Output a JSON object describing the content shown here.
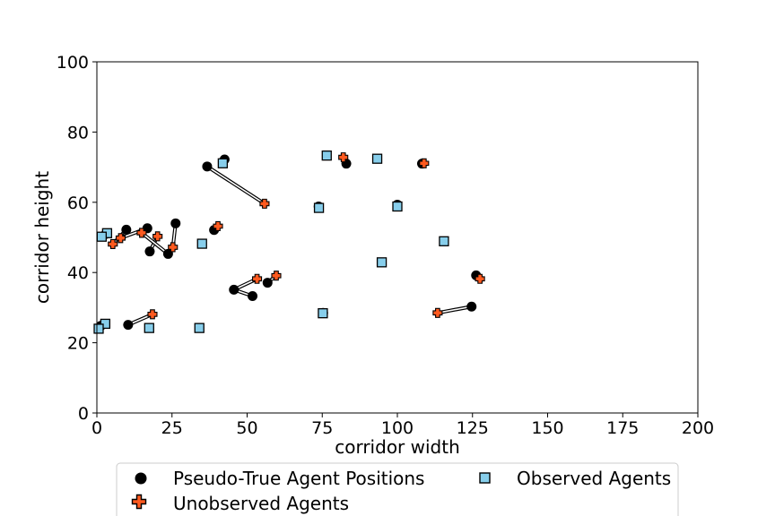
{
  "chart_data": {
    "type": "scatter",
    "title": "",
    "xlabel": "corridor width",
    "ylabel": "corridor height",
    "xlim": [
      0,
      200
    ],
    "ylim": [
      0,
      100
    ],
    "xticks": [
      0,
      25,
      50,
      75,
      100,
      125,
      150,
      175,
      200
    ],
    "yticks": [
      0,
      20,
      40,
      60,
      80,
      100
    ],
    "grid": false,
    "legend_position": "bottom",
    "colors": {
      "pseudo_true": "#000000",
      "unobserved": "#ff5a1f",
      "observed": "#87ceeb",
      "link": "#000000"
    },
    "legend": {
      "pseudo_true": "Pseudo-True Agent Positions",
      "unobserved": "Unobserved Agents",
      "observed": "Observed Agents"
    },
    "pseudo_true": [
      [
        42.5,
        72.2
      ],
      [
        36.7,
        70.2
      ],
      [
        83.0,
        71.0
      ],
      [
        108.2,
        71.0
      ],
      [
        73.8,
        58.8
      ],
      [
        100.0,
        59.3
      ],
      [
        26.2,
        54.0
      ],
      [
        9.8,
        52.2
      ],
      [
        16.8,
        52.6
      ],
      [
        39.0,
        52.1
      ],
      [
        3.0,
        51.0
      ],
      [
        17.6,
        46.0
      ],
      [
        23.7,
        45.3
      ],
      [
        126.2,
        39.2
      ],
      [
        51.8,
        33.3
      ],
      [
        56.8,
        37.1
      ],
      [
        45.6,
        35.1
      ],
      [
        124.7,
        30.3
      ],
      [
        75.3,
        28.5
      ],
      [
        10.4,
        25.1
      ],
      [
        1.3,
        24.8
      ]
    ],
    "unobserved": [
      [
        55.8,
        59.6
      ],
      [
        82.0,
        72.8
      ],
      [
        108.9,
        71.1
      ],
      [
        40.3,
        53.2
      ],
      [
        5.3,
        48.1
      ],
      [
        7.9,
        49.8
      ],
      [
        14.9,
        51.3
      ],
      [
        20.2,
        50.3
      ],
      [
        25.3,
        47.2
      ],
      [
        127.5,
        38.2
      ],
      [
        53.3,
        38.2
      ],
      [
        59.7,
        39.1
      ],
      [
        113.4,
        28.5
      ],
      [
        18.5,
        28.1
      ]
    ],
    "observed": [
      [
        41.9,
        71.1
      ],
      [
        76.5,
        73.3
      ],
      [
        93.3,
        72.4
      ],
      [
        73.9,
        58.4
      ],
      [
        100.0,
        58.8
      ],
      [
        3.4,
        51.2
      ],
      [
        1.6,
        50.2
      ],
      [
        35.0,
        48.2
      ],
      [
        115.5,
        48.9
      ],
      [
        94.8,
        42.9
      ],
      [
        75.2,
        28.4
      ],
      [
        2.8,
        25.4
      ],
      [
        17.4,
        24.2
      ],
      [
        34.1,
        24.2
      ],
      [
        0.6,
        24.0
      ]
    ],
    "links": [
      [
        [
          36.7,
          70.2
        ],
        [
          55.8,
          59.6
        ]
      ],
      [
        [
          83.0,
          71.0
        ],
        [
          82.0,
          72.8
        ]
      ],
      [
        [
          9.8,
          52.2
        ],
        [
          5.3,
          48.1
        ]
      ],
      [
        [
          16.8,
          52.6
        ],
        [
          7.9,
          49.8
        ]
      ],
      [
        [
          17.6,
          46.0
        ],
        [
          20.2,
          50.3
        ]
      ],
      [
        [
          23.7,
          45.3
        ],
        [
          14.9,
          51.3
        ]
      ],
      [
        [
          26.2,
          54.0
        ],
        [
          25.3,
          47.2
        ]
      ],
      [
        [
          39.0,
          52.1
        ],
        [
          40.3,
          53.2
        ]
      ],
      [
        [
          51.8,
          33.3
        ],
        [
          45.6,
          35.1
        ]
      ],
      [
        [
          45.6,
          35.1
        ],
        [
          53.3,
          38.2
        ]
      ],
      [
        [
          56.8,
          37.1
        ],
        [
          59.7,
          39.1
        ]
      ],
      [
        [
          124.7,
          30.3
        ],
        [
          113.4,
          28.5
        ]
      ],
      [
        [
          126.2,
          39.2
        ],
        [
          127.5,
          38.2
        ]
      ],
      [
        [
          10.4,
          25.1
        ],
        [
          18.5,
          28.1
        ]
      ]
    ]
  }
}
